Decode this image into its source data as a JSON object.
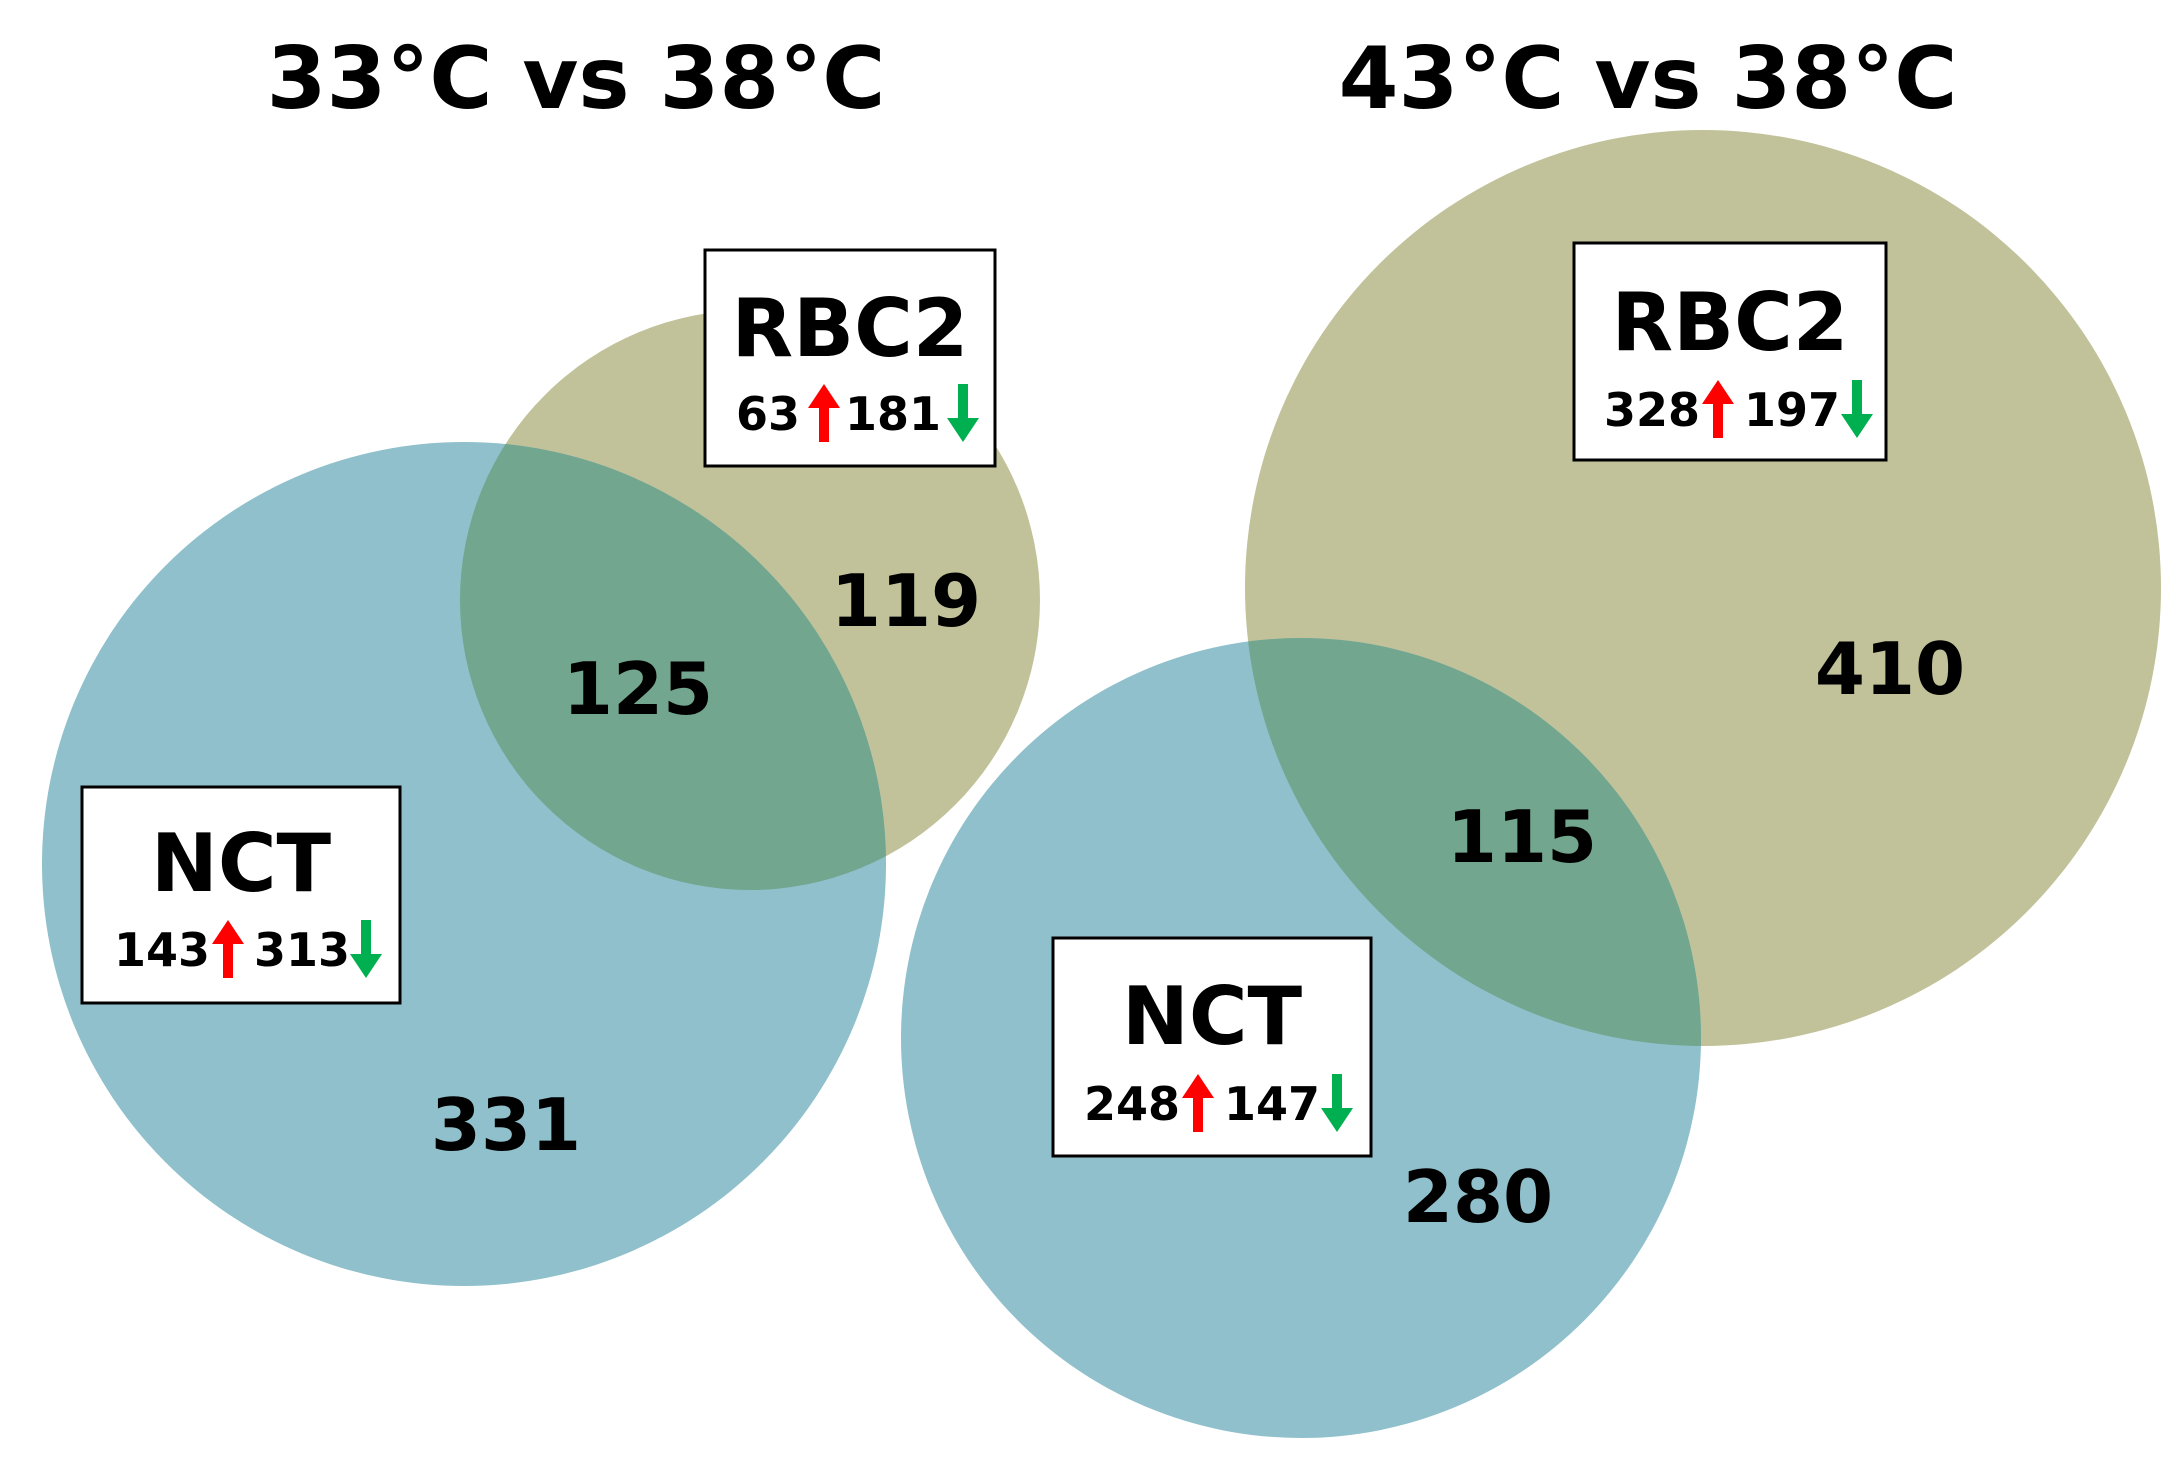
{
  "colors": {
    "blue": "#8fc0cb",
    "olive": "#c1c29a",
    "overlap": "#72a68e",
    "up": "#ff0000",
    "down": "#00b050"
  },
  "panels": [
    {
      "title": "33°C vs 38°C",
      "rbc2": {
        "label": "RBC2",
        "up": "63",
        "down": "181",
        "unique": "119"
      },
      "nct": {
        "label": "NCT",
        "up": "143",
        "down": "313",
        "unique": "331"
      },
      "shared": "125"
    },
    {
      "title": "43°C vs 38°C",
      "rbc2": {
        "label": "RBC2",
        "up": "328",
        "down": "197",
        "unique": "410"
      },
      "nct": {
        "label": "NCT",
        "up": "248",
        "down": "147",
        "unique": "280"
      },
      "shared": "115"
    }
  ]
}
